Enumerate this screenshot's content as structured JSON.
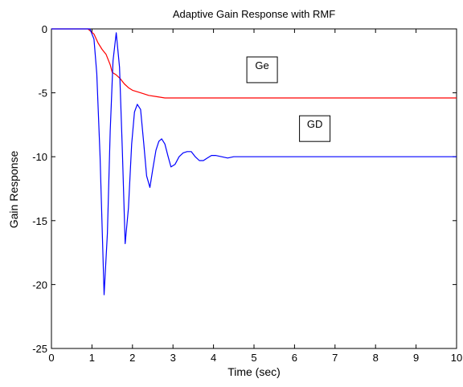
{
  "chart_data": {
    "type": "line",
    "title": "Adaptive Gain Response with RMF",
    "xlabel": "Time (sec)",
    "ylabel": "Gain Response",
    "xlim": [
      0,
      10
    ],
    "ylim": [
      -25,
      0
    ],
    "xticks": [
      0,
      1,
      2,
      3,
      4,
      5,
      6,
      7,
      8,
      9,
      10
    ],
    "yticks": [
      0,
      -5,
      -10,
      -15,
      -20,
      -25
    ],
    "xtick_labels": [
      "0",
      "1",
      "2",
      "3",
      "4",
      "5",
      "6",
      "7",
      "8",
      "9",
      "10"
    ],
    "ytick_labels": [
      "0",
      "-5",
      "-10",
      "-15",
      "-20",
      "-25"
    ],
    "grid": false,
    "series": [
      {
        "name": "Ge",
        "color": "#ff0000",
        "x": [
          0,
          0.9,
          1.05,
          1.15,
          1.25,
          1.35,
          1.45,
          1.5,
          1.6,
          1.7,
          1.8,
          1.9,
          2.0,
          2.2,
          2.4,
          2.6,
          2.8,
          3.0,
          4.0,
          5.0,
          10.0
        ],
        "y": [
          0,
          0,
          -0.4,
          -1.1,
          -1.6,
          -2.0,
          -2.8,
          -3.4,
          -3.6,
          -3.9,
          -4.3,
          -4.6,
          -4.8,
          -5.0,
          -5.2,
          -5.3,
          -5.4,
          -5.4,
          -5.4,
          -5.4,
          -5.4
        ]
      },
      {
        "name": "GD",
        "color": "#0000ff",
        "x": [
          0,
          0.95,
          1.05,
          1.12,
          1.2,
          1.3,
          1.38,
          1.45,
          1.52,
          1.6,
          1.68,
          1.75,
          1.82,
          1.9,
          1.98,
          2.05,
          2.12,
          2.2,
          2.28,
          2.35,
          2.43,
          2.5,
          2.58,
          2.65,
          2.72,
          2.8,
          2.88,
          2.95,
          3.05,
          3.15,
          3.25,
          3.35,
          3.45,
          3.55,
          3.65,
          3.75,
          3.85,
          3.95,
          4.05,
          4.2,
          4.35,
          4.5,
          4.7,
          4.9,
          5.1,
          10.0
        ],
        "y": [
          0,
          0,
          -0.8,
          -3.5,
          -10.0,
          -20.8,
          -16.0,
          -8.0,
          -2.5,
          -0.3,
          -3.0,
          -9.5,
          -16.8,
          -14.0,
          -9.0,
          -6.5,
          -5.9,
          -6.3,
          -9.0,
          -11.5,
          -12.4,
          -11.0,
          -9.5,
          -8.8,
          -8.6,
          -9.0,
          -10.0,
          -10.8,
          -10.6,
          -10.0,
          -9.7,
          -9.6,
          -9.6,
          -10.0,
          -10.3,
          -10.3,
          -10.1,
          -9.9,
          -9.9,
          -10.0,
          -10.1,
          -10.0,
          -10.0,
          -10.0,
          -10.0,
          -10.0
        ]
      }
    ],
    "annotations": [
      {
        "text": "Ge",
        "x": 5.2,
        "y": -3.2
      },
      {
        "text": "GD",
        "x": 6.5,
        "y": -7.8
      }
    ]
  }
}
